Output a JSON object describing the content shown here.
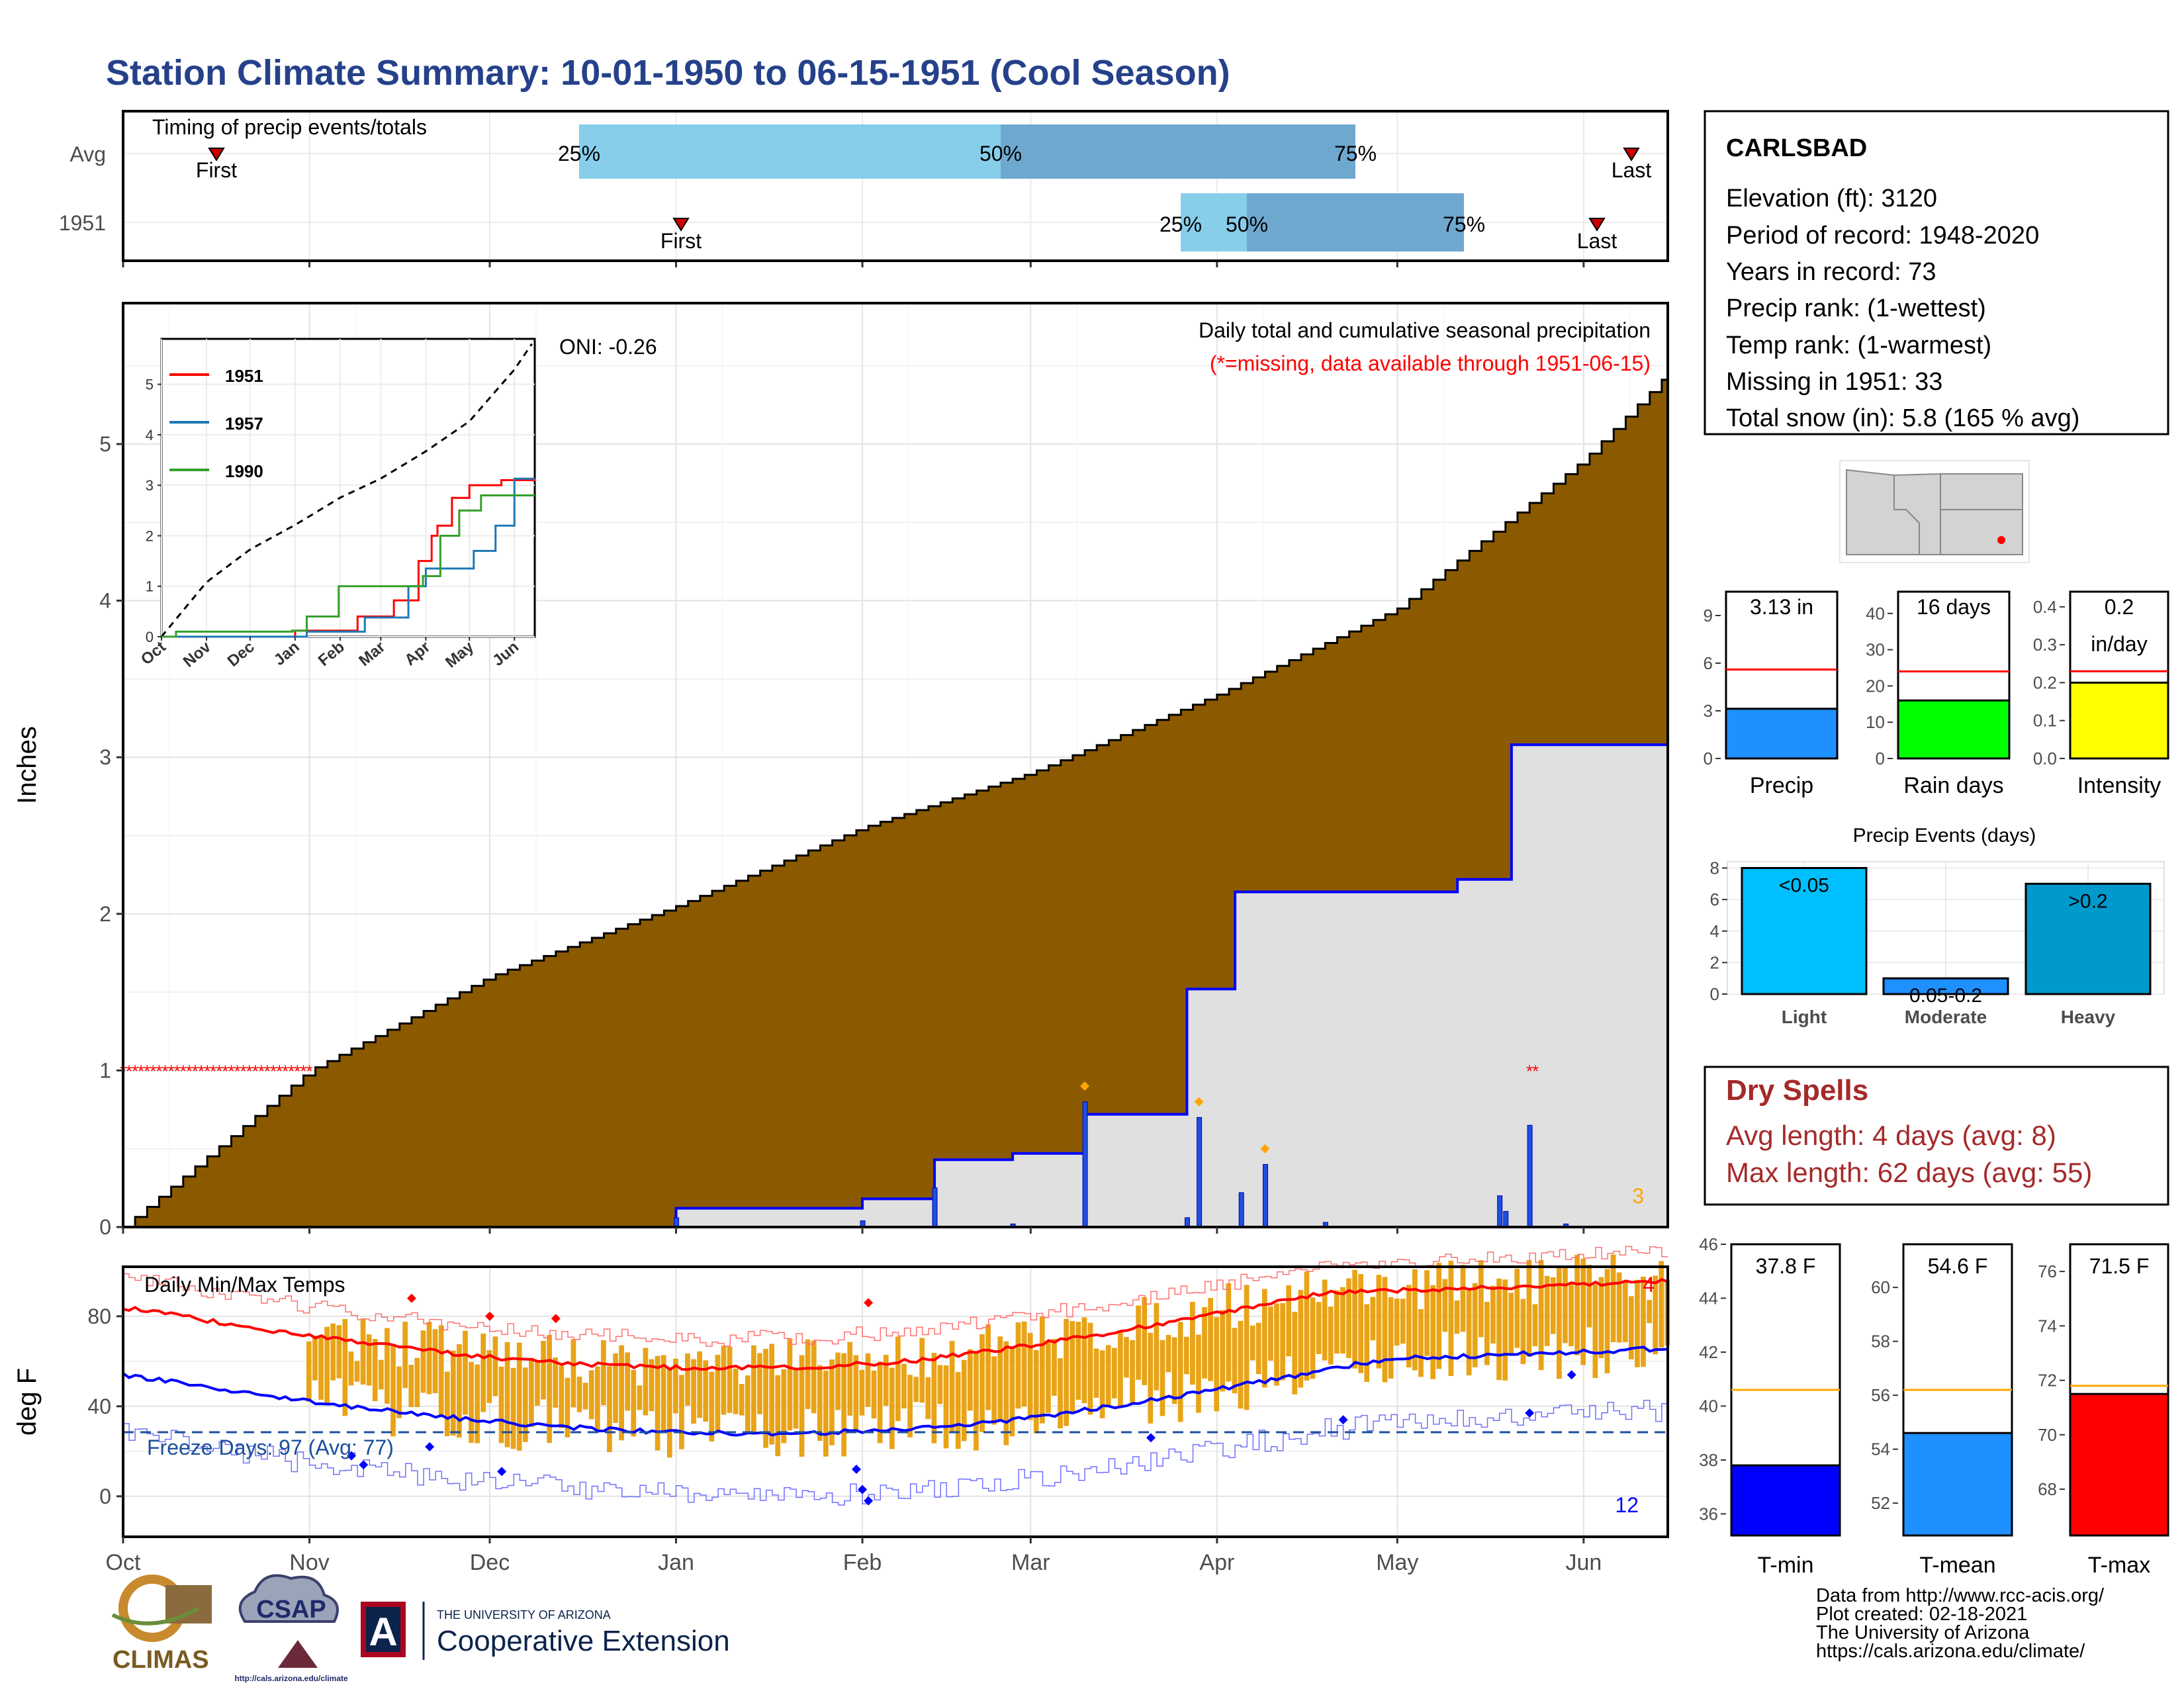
{
  "title": "Station Climate Summary: 10-01-1950 to 06-15-1951 (Cool Season)",
  "colors": {
    "title": "#25418A",
    "precip_fill": "#8B5A00",
    "normal_fill": "#E0E0E0",
    "precip_line": "#0000FF",
    "tmin": "#0000FF",
    "tmax": "#FF0000",
    "tmean": "#1E90FF",
    "temp_bars": "#E8A317",
    "dry_spells": "#A52A2A",
    "light": "#00BFFF",
    "moderate": "#1E90FF",
    "heavy": "#0099CC",
    "precip_bar": "#1E90FF",
    "raindays_bar": "#00FF00",
    "intensity_bar": "#FFFF00"
  },
  "timing_panel": {
    "label": "Timing of precip events/totals",
    "rows": [
      "Avg",
      "1951"
    ],
    "first_label": "First",
    "last_label": "Last",
    "p25": "25%",
    "p50": "50%",
    "p75": "75%"
  },
  "month_labels": [
    "Oct",
    "Nov",
    "Dec",
    "Jan",
    "Feb",
    "Mar",
    "Apr",
    "May",
    "Jun"
  ],
  "precip_panel": {
    "ylabel": "Inches",
    "yticks": [
      "0",
      "1",
      "2",
      "3",
      "4",
      "5"
    ],
    "caption": "Daily total and cumulative seasonal precipitation",
    "missing_note": "(*=missing, data available through 1951-06-15)",
    "oni": "ONI: -0.26",
    "count_label": "3"
  },
  "inset": {
    "yticks": [
      "0",
      "1",
      "2",
      "3",
      "4",
      "5"
    ],
    "xticks": [
      "Oct",
      "Nov",
      "Dec",
      "Jan",
      "Feb",
      "Mar",
      "Apr",
      "May",
      "Jun"
    ],
    "legend": [
      "1951",
      "1957",
      "1990"
    ]
  },
  "temp_panel": {
    "ylabel": "deg F",
    "yticks": [
      "0",
      "40",
      "80"
    ],
    "caption": "Daily Min/Max Temps",
    "freeze_label": "Freeze Days: 97 (Avg: 77)",
    "max_count": "4",
    "min_count": "12"
  },
  "station": {
    "name": "CARLSBAD",
    "lines": [
      "Elevation (ft): 3120",
      "Period of record: 1948-2020",
      "Years in record: 73",
      "Precip rank:  (1-wettest)",
      "Temp rank:  (1-warmest)",
      "Missing in 1951: 33",
      "Total snow (in): 5.8 (165 % avg)"
    ]
  },
  "mini_precip": {
    "precip": {
      "label": "Precip",
      "value_text": "3.13 in",
      "value": 3.13,
      "avg": 5.6,
      "yticks": [
        "0",
        "3",
        "6",
        "9"
      ],
      "ymax": 10.5
    },
    "raindays": {
      "label": "Rain days",
      "value_text": "16 days",
      "value": 16,
      "avg": 24,
      "yticks": [
        "0",
        "10",
        "20",
        "30",
        "40"
      ],
      "ymax": 46
    },
    "intensity": {
      "label": "Intensity",
      "value_text_1": "0.2",
      "value_text_2": "in/day",
      "value": 0.2,
      "avg": 0.23,
      "yticks": [
        "0.0",
        "0.1",
        "0.2",
        "0.3",
        "0.4"
      ],
      "ymax": 0.44
    }
  },
  "events": {
    "title": "Precip Events (days)",
    "yticks": [
      "0",
      "2",
      "4",
      "6",
      "8"
    ],
    "categories": [
      "Light",
      "Moderate",
      "Heavy"
    ],
    "bar_labels": [
      "<0.05",
      "0.05-0.2",
      ">0.2"
    ],
    "values": [
      8,
      1,
      7
    ]
  },
  "dry_spells": {
    "title": "Dry Spells",
    "avg_line": "Avg length: 4 days (avg: 8)",
    "max_line": "Max length: 62 days (avg: 55)"
  },
  "mini_temp": {
    "tmin": {
      "label": "T-min",
      "value_text": "37.8 F",
      "value": 37.8,
      "avg": 40.6,
      "yticks": [
        "36",
        "38",
        "40",
        "42",
        "44",
        "46"
      ],
      "ymin": 35.2,
      "ymax": 46
    },
    "tmean": {
      "label": "T-mean",
      "value_text": "54.6 F",
      "value": 54.6,
      "avg": 56.2,
      "yticks": [
        "52",
        "54",
        "56",
        "58",
        "60"
      ],
      "ymin": 50.8,
      "ymax": 61.6
    },
    "tmax": {
      "label": "T-max",
      "value_text": "71.5 F",
      "value": 71.5,
      "avg": 71.8,
      "yticks": [
        "68",
        "70",
        "72",
        "74",
        "76"
      ],
      "ymin": 66.3,
      "ymax": 77
    }
  },
  "footer": {
    "lines": [
      "Data from http://www.rcc-acis.org/",
      "Plot created: 02-18-2021",
      "The University of Arizona",
      "https://cals.arizona.edu/climate/"
    ],
    "climas": "CLIMAS",
    "csap": "CSAP",
    "csap_url": "http://cals.arizona.edu/climate",
    "ua_small": "THE UNIVERSITY OF ARIZONA",
    "ua_big": "Cooperative Extension",
    "ua_letter": "A"
  },
  "chart_data": {
    "type": "area",
    "title": "Daily total and cumulative seasonal precipitation",
    "ylabel": "Inches",
    "ylim": [
      0,
      5.9
    ],
    "x_range": [
      "1950-10-01",
      "1951-06-15"
    ],
    "series": [
      {
        "name": "cumulative normal",
        "x": [
          "1950-10-01",
          "1950-11-01",
          "1950-12-01",
          "1951-01-01",
          "1951-02-01",
          "1951-03-01",
          "1951-04-01",
          "1951-05-01",
          "1951-06-01",
          "1951-06-15"
        ],
        "values": [
          0,
          1.0,
          1.6,
          2.05,
          2.55,
          2.9,
          3.4,
          3.95,
          4.9,
          5.45
        ]
      },
      {
        "name": "cumulative 1951",
        "x": [
          "1950-10-01",
          "1951-01-01",
          "1951-02-01",
          "1951-02-13",
          "1951-02-26",
          "1951-03-10",
          "1951-03-27",
          "1951-04-04",
          "1951-05-11",
          "1951-05-20",
          "1951-06-15"
        ],
        "values": [
          0,
          0.12,
          0.18,
          0.43,
          0.47,
          0.72,
          1.52,
          2.14,
          2.22,
          3.08,
          3.13
        ]
      }
    ]
  }
}
